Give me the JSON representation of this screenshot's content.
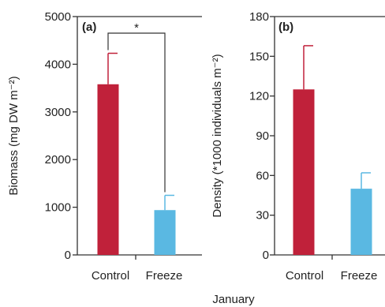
{
  "colors": {
    "control": "#c0213a",
    "freeze": "#5ab8e2",
    "axis": "#333333"
  },
  "common_xlabel": "January",
  "chart_data": [
    {
      "type": "bar",
      "panel_label": "(a)",
      "categories": [
        "Control",
        "Freeze"
      ],
      "values": [
        3580,
        940
      ],
      "errors": [
        650,
        310
      ],
      "ylabel": "Biomass (mg DW m⁻²)",
      "ylim": [
        0,
        5000
      ],
      "yticks": [
        0,
        1000,
        2000,
        3000,
        4000,
        5000
      ],
      "annotation": "*",
      "grid": false,
      "legend": "none"
    },
    {
      "type": "bar",
      "panel_label": "(b)",
      "categories": [
        "Control",
        "Freeze"
      ],
      "values": [
        125,
        50
      ],
      "errors": [
        33,
        12
      ],
      "ylabel": "Density (*1000 individuals m⁻²)",
      "ylim": [
        0,
        180
      ],
      "yticks": [
        0,
        30,
        60,
        90,
        120,
        150,
        180
      ],
      "grid": false,
      "legend": "none"
    }
  ]
}
